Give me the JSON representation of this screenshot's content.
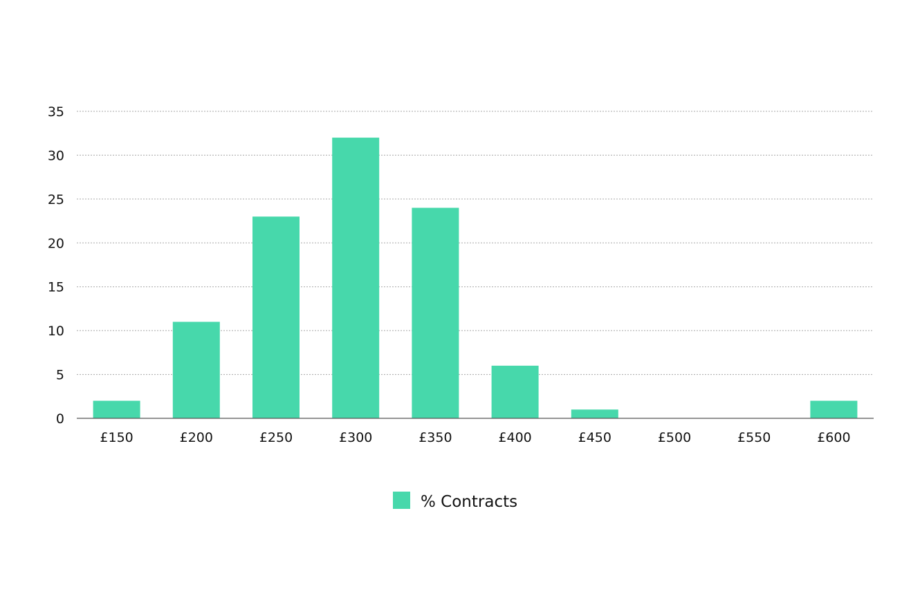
{
  "chart_data": {
    "type": "bar",
    "title": "",
    "xlabel": "",
    "ylabel": "",
    "categories": [
      "£150",
      "£200",
      "£250",
      "£300",
      "£350",
      "£400",
      "£450",
      "£500",
      "£550",
      "£600"
    ],
    "series": [
      {
        "name": "% Contracts",
        "values": [
          2,
          11,
          23,
          32,
          24,
          6,
          1,
          0,
          0,
          2
        ],
        "color": "#47d8ab"
      }
    ],
    "ylim": [
      0,
      35
    ],
    "yticks": [
      0,
      5,
      10,
      15,
      20,
      25,
      30,
      35
    ],
    "ytick_labels": [
      "0",
      "5",
      "10",
      "15",
      "20",
      "25",
      "30",
      "35"
    ],
    "grid": true,
    "grid_style": "dotted",
    "legend_position": "bottom-center"
  }
}
